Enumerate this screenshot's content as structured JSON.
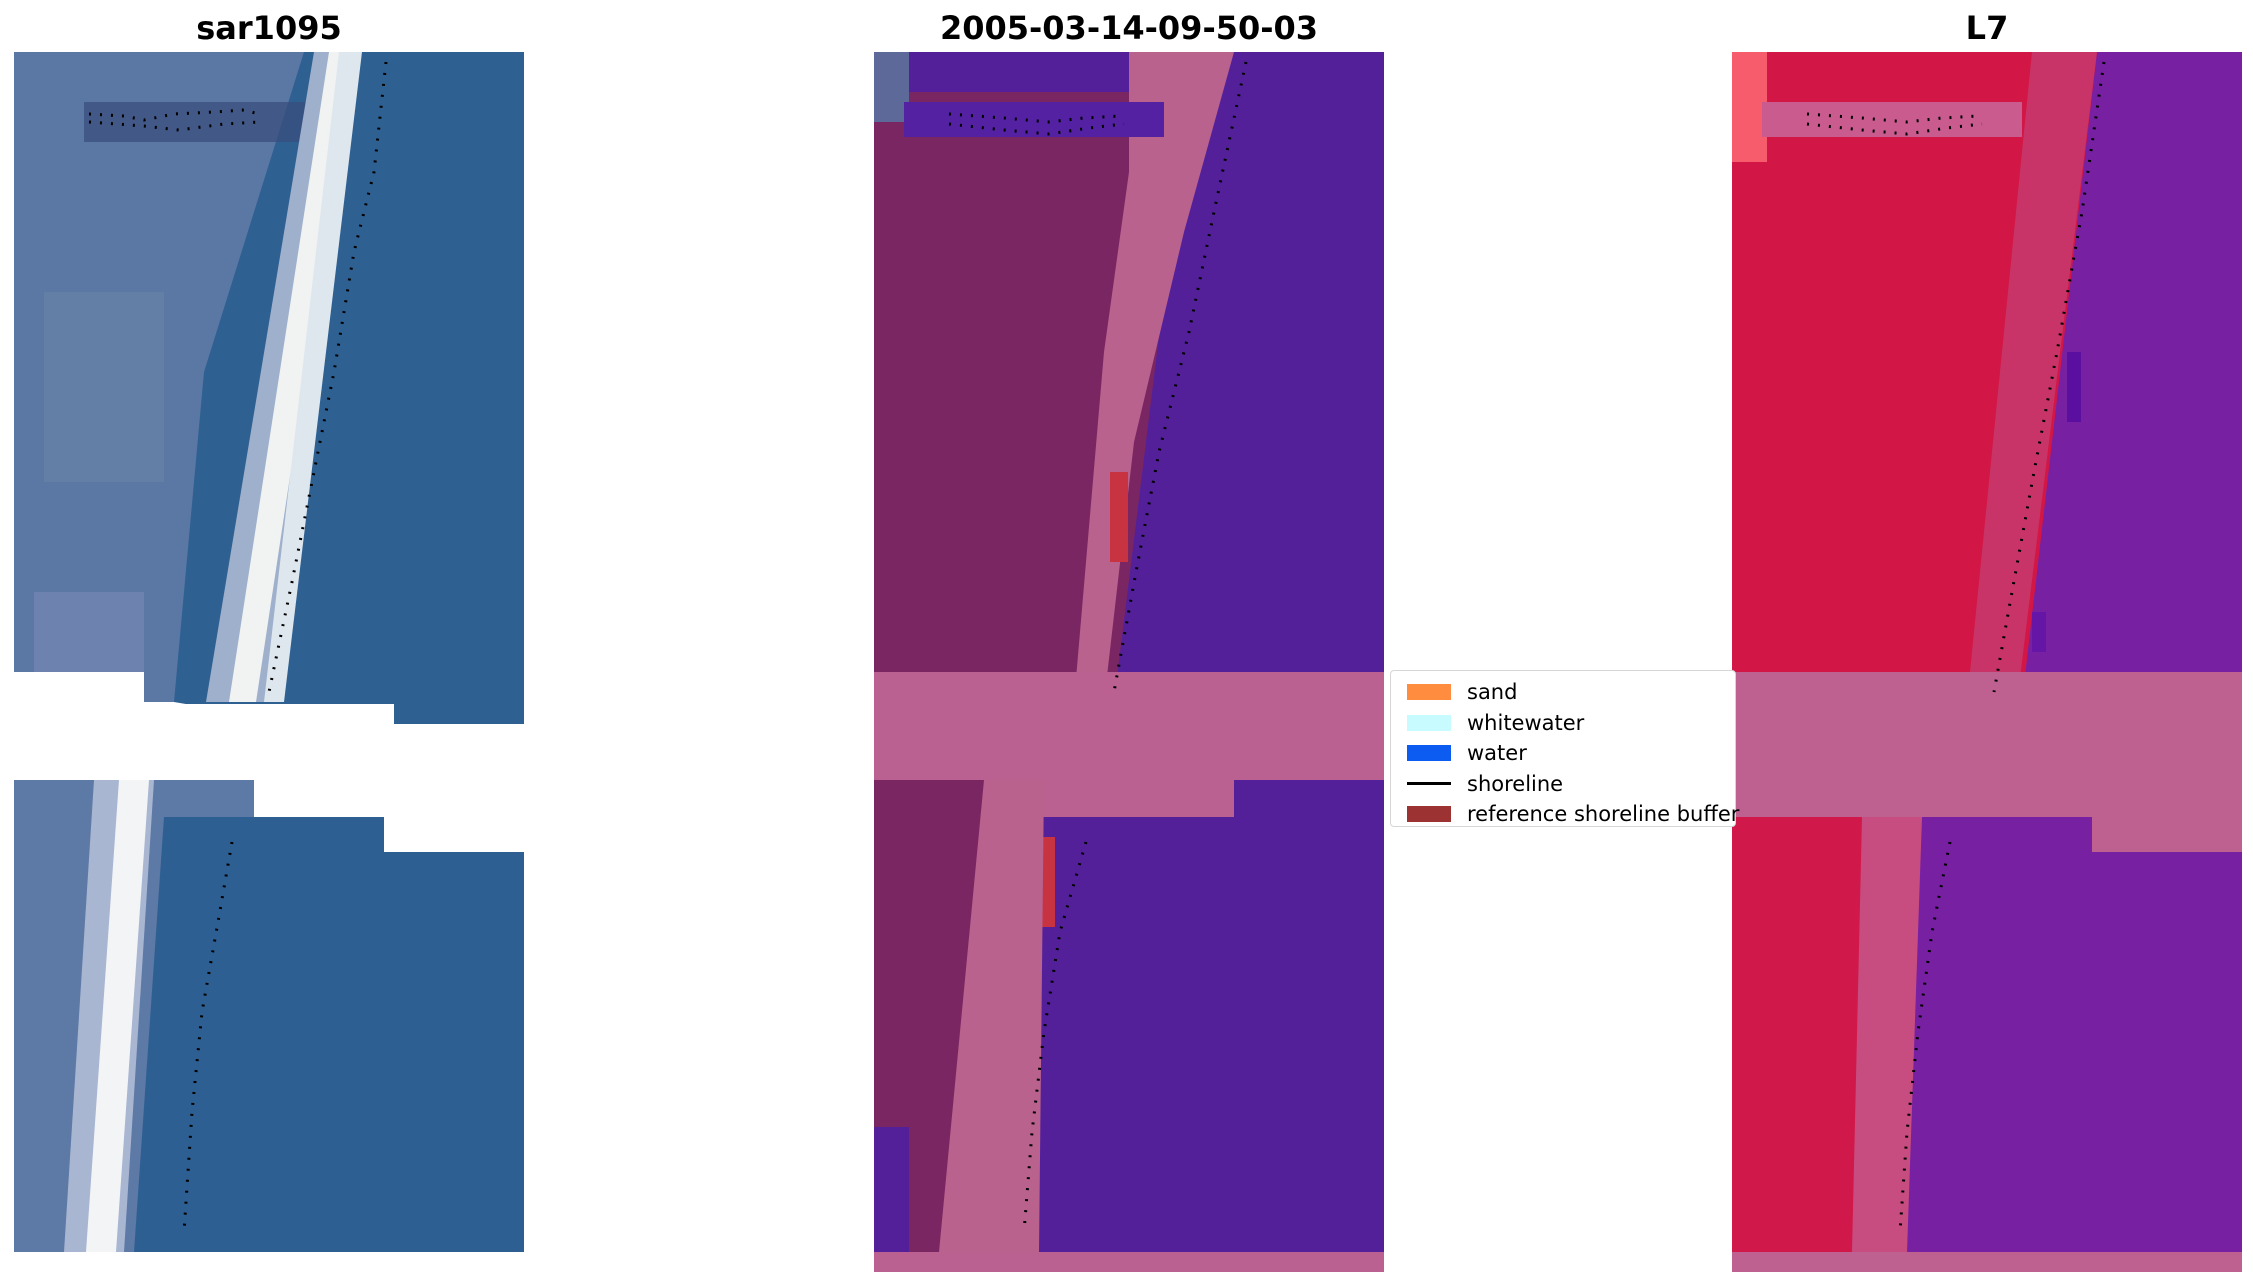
{
  "panels": {
    "left": {
      "title": "sar1095"
    },
    "middle": {
      "title": "2005-03-14-09-50-03"
    },
    "right": {
      "title": "L7"
    }
  },
  "legend": {
    "entries": [
      {
        "label": "sand",
        "kind": "patch",
        "color": "#ff8c3f"
      },
      {
        "label": "whitewater",
        "kind": "patch",
        "color": "#c8fbff"
      },
      {
        "label": "water",
        "kind": "patch",
        "color": "#0c5cf2"
      },
      {
        "label": "shoreline",
        "kind": "line",
        "color": "#000000"
      },
      {
        "label": "reference shoreline buffer",
        "kind": "patch",
        "color": "#9c3232"
      }
    ]
  },
  "colors": {
    "ocean_rgb": "#2d5f92",
    "surf_white": "#eef2f4",
    "land_rgb": "#5b77a4",
    "class_water": "#53209a",
    "class_land": "#7a2663",
    "class_sand_overlay": "#b9628d",
    "class_buffer": "#c83341",
    "index_land": "#d21746",
    "index_water": "#761fa3",
    "index_band": "#be6090"
  },
  "icons": {
    "shoreline_marker": "dotted-black-line"
  }
}
